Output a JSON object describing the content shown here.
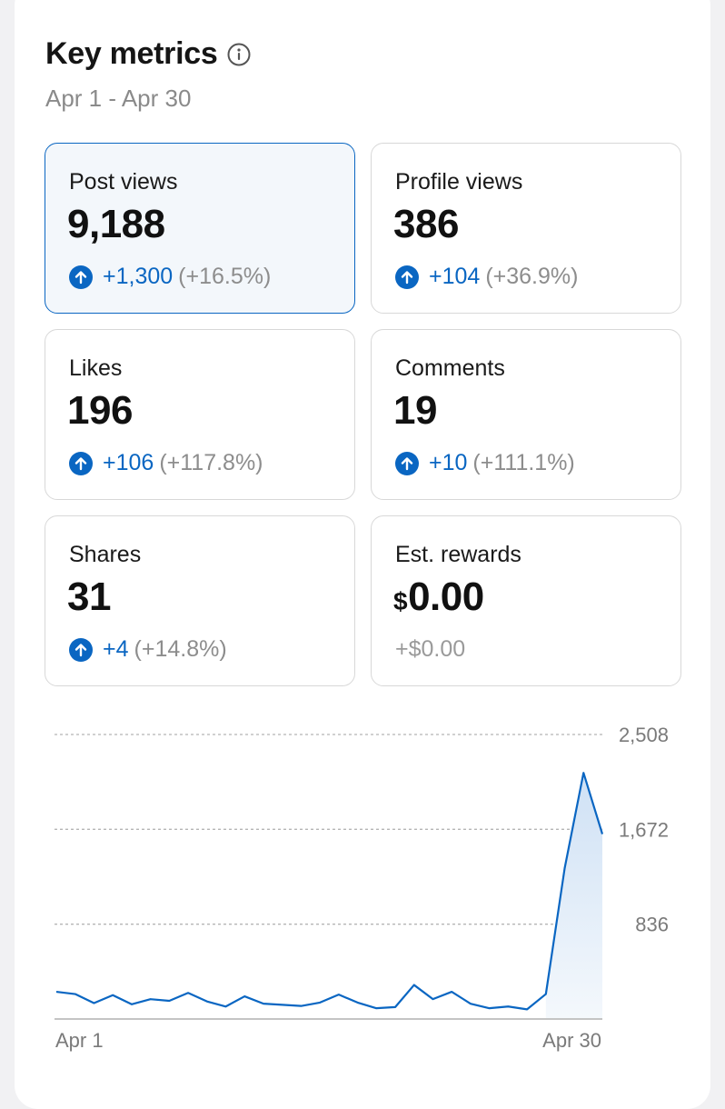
{
  "header": {
    "title": "Key metrics",
    "date_range": "Apr 1 - Apr 30",
    "info_icon": "info-icon"
  },
  "metrics": [
    {
      "label": "Post views",
      "value": "9,188",
      "delta": "+1,300",
      "pct": "(+16.5%)",
      "selected": true
    },
    {
      "label": "Profile views",
      "value": "386",
      "delta": "+104",
      "pct": "(+36.9%)",
      "selected": false
    },
    {
      "label": "Likes",
      "value": "196",
      "delta": "+106",
      "pct": "(+117.8%)",
      "selected": false
    },
    {
      "label": "Comments",
      "value": "19",
      "delta": "+10",
      "pct": "(+111.1%)",
      "selected": false
    },
    {
      "label": "Shares",
      "value": "31",
      "delta": "+4",
      "pct": "(+14.8%)",
      "selected": false
    },
    {
      "label": "Est. rewards",
      "currency": "$",
      "value": "0.00",
      "delta": "+$0.00",
      "selected": false
    }
  ],
  "colors": {
    "accent": "#0a66c2",
    "text": "#151515",
    "muted": "#8a8a8a",
    "card_border": "#d8d8d8",
    "selected_bg": "#f3f7fb"
  },
  "chart_data": {
    "type": "area",
    "x_start_label": "Apr 1",
    "x_end_label": "Apr 30",
    "y_ticks": [
      "836",
      "1,672",
      "2,508"
    ],
    "ylim": [
      0,
      2508
    ],
    "grid": "dashed horizontal",
    "x": [
      1,
      2,
      3,
      4,
      5,
      6,
      7,
      8,
      9,
      10,
      11,
      12,
      13,
      14,
      15,
      16,
      17,
      18,
      19,
      20,
      21,
      22,
      23,
      24,
      25,
      26,
      27,
      28,
      29,
      30
    ],
    "values": [
      240,
      220,
      140,
      210,
      130,
      175,
      160,
      230,
      155,
      110,
      200,
      135,
      125,
      115,
      145,
      215,
      145,
      95,
      105,
      300,
      175,
      240,
      135,
      95,
      110,
      85,
      220,
      1330,
      2170,
      1630
    ]
  }
}
